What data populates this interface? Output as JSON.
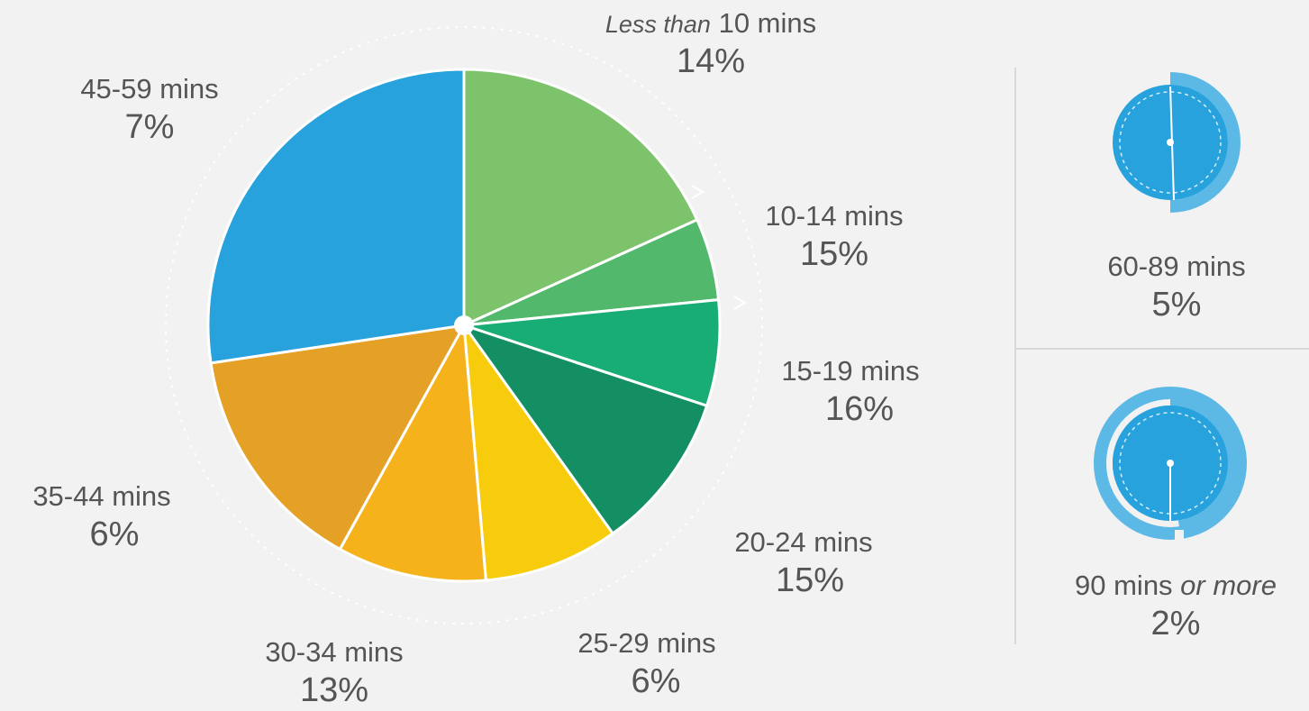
{
  "chart_data": {
    "type": "pie",
    "title": "",
    "slices": [
      {
        "label": "Less than 10 mins",
        "label_prefix": "Less than",
        "label_rest": "10 mins",
        "value": 14,
        "display": "14%",
        "color": "#7dc36b"
      },
      {
        "label": "10-14 mins",
        "value": 15,
        "display": "15%",
        "color": "#51b86c"
      },
      {
        "label": "15-19 mins",
        "value": 16,
        "display": "16%",
        "color": "#18ad74"
      },
      {
        "label": "20-24 mins",
        "value": 15,
        "display": "15%",
        "color": "#138f63"
      },
      {
        "label": "25-29 mins",
        "value": 6,
        "display": "6%",
        "color": "#f7cc0d"
      },
      {
        "label": "30-34 mins",
        "value": 13,
        "display": "13%",
        "color": "#f5b21b"
      },
      {
        "label": "35-44 mins",
        "value": 6,
        "display": "6%",
        "color": "#e5a026"
      },
      {
        "label": "45-59 mins",
        "value": 7,
        "display": "7%",
        "color": "#27a2dd"
      }
    ],
    "side_items": [
      {
        "label": "60-89 mins",
        "value": 5,
        "display": "5%",
        "color": "#27a2dd",
        "icon": "clock-icon"
      },
      {
        "label": "90 mins or more",
        "label_main": "90 mins",
        "label_suffix": "or more",
        "value": 2,
        "display": "2%",
        "color": "#27a2dd",
        "icon": "clock-icon"
      }
    ]
  }
}
